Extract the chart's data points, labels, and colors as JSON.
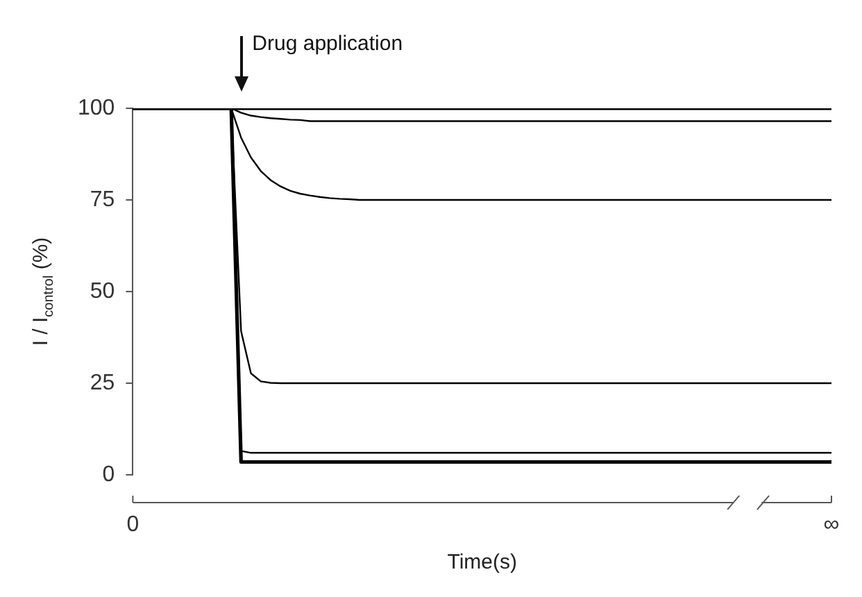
{
  "chart_data": {
    "type": "line",
    "xlabel": "Time(s)",
    "ylabel": "I / I$_{control}$ (%)",
    "annotations": [
      "Drug application"
    ],
    "categories": [
      "0",
      null,
      null,
      null,
      null,
      null,
      null,
      null,
      null,
      null,
      null,
      null,
      null,
      null,
      null,
      null,
      null,
      null,
      null,
      null,
      null,
      null,
      null,
      null,
      null,
      null,
      null,
      null,
      null,
      null,
      null,
      null,
      null,
      null,
      null,
      null,
      null,
      null,
      null,
      null,
      null,
      null,
      null,
      null,
      null,
      null,
      null,
      null,
      null,
      null,
      null,
      null,
      null,
      null,
      null,
      null,
      null,
      null,
      null,
      null,
      null,
      null,
      null,
      null,
      null,
      null,
      null,
      null,
      null,
      null,
      null,
      "∞"
    ],
    "ylim": [
      0,
      100
    ],
    "yticks": [
      0,
      25,
      50,
      75,
      100
    ],
    "grid": false,
    "legend": false,
    "marker": "none",
    "line_style": "solid",
    "series": [
      {
        "color": "#000000",
        "values": [
          100,
          100,
          100,
          100,
          100,
          100,
          100,
          100,
          100,
          100,
          100,
          100,
          100,
          100,
          100,
          100,
          100,
          100,
          100,
          100,
          100,
          100,
          100,
          100,
          100,
          100,
          100,
          100,
          100,
          100,
          100,
          100,
          100,
          100,
          100,
          100,
          100,
          100,
          100,
          100,
          100,
          100,
          100,
          100,
          100,
          100,
          100,
          100,
          100,
          100,
          100,
          100,
          100,
          100,
          100,
          100,
          100,
          100,
          100,
          100,
          100,
          100,
          100,
          100,
          100,
          100,
          100,
          100,
          100,
          100,
          100,
          100
        ]
      },
      {
        "color": "#000000",
        "values": [
          100,
          100,
          100,
          100,
          100,
          100,
          100,
          100,
          100,
          100,
          100,
          98.8,
          98,
          97.6,
          97.3,
          97.1,
          96.9,
          96.8,
          96.5,
          96.5,
          96.5,
          96.5,
          96.5,
          96.5,
          96.5,
          96.5,
          96.5,
          96.5,
          96.5,
          96.5,
          96.5,
          96.5,
          96.5,
          96.5,
          96.5,
          96.5,
          96.5,
          96.5,
          96.5,
          96.5,
          96.5,
          96.5,
          96.5,
          96.5,
          96.5,
          96.5,
          96.5,
          96.5,
          96.5,
          96.5,
          96.5,
          96.5,
          96.5,
          96.5,
          96.5,
          96.5,
          96.5,
          96.5,
          96.5,
          96.5,
          96.5,
          96.5,
          96.5,
          96.5,
          96.5,
          96.5,
          96.5,
          96.5,
          96.5,
          96.5,
          96.5,
          96.5
        ]
      },
      {
        "color": "#000000",
        "values": [
          100,
          100,
          100,
          100,
          100,
          100,
          100,
          100,
          100,
          100,
          100,
          92,
          86.6,
          82.9,
          80.4,
          78.7,
          77.5,
          76.7,
          76.2,
          75.8,
          75.5,
          75.3,
          75.2,
          75,
          75,
          75,
          75,
          75,
          75,
          75,
          75,
          75,
          75,
          75,
          75,
          75,
          75,
          75,
          75,
          75,
          75,
          75,
          75,
          75,
          75,
          75,
          75,
          75,
          75,
          75,
          75,
          75,
          75,
          75,
          75,
          75,
          75,
          75,
          75,
          75,
          75,
          75,
          75,
          75,
          75,
          75,
          75,
          75,
          75,
          75,
          75,
          75
        ]
      },
      {
        "color": "#000000",
        "values": [
          100,
          100,
          100,
          100,
          100,
          100,
          100,
          100,
          100,
          100,
          100,
          39.2,
          27.7,
          25.5,
          25.1,
          25,
          25,
          25,
          25,
          25,
          25,
          25,
          25,
          25,
          25,
          25,
          25,
          25,
          25,
          25,
          25,
          25,
          25,
          25,
          25,
          25,
          25,
          25,
          25,
          25,
          25,
          25,
          25,
          25,
          25,
          25,
          25,
          25,
          25,
          25,
          25,
          25,
          25,
          25,
          25,
          25,
          25,
          25,
          25,
          25,
          25,
          25,
          25,
          25,
          25,
          25,
          25,
          25,
          25,
          25,
          25,
          25
        ]
      },
      {
        "color": "#000000",
        "values": [
          100,
          100,
          100,
          100,
          100,
          100,
          100,
          100,
          100,
          100,
          100,
          6.5,
          6,
          6,
          6,
          6,
          6,
          6,
          6,
          6,
          6,
          6,
          6,
          6,
          6,
          6,
          6,
          6,
          6,
          6,
          6,
          6,
          6,
          6,
          6,
          6,
          6,
          6,
          6,
          6,
          6,
          6,
          6,
          6,
          6,
          6,
          6,
          6,
          6,
          6,
          6,
          6,
          6,
          6,
          6,
          6,
          6,
          6,
          6,
          6,
          6,
          6,
          6,
          6,
          6,
          6,
          6,
          6,
          6,
          6,
          6,
          6
        ]
      },
      {
        "color": "#000000",
        "values": [
          100,
          100,
          100,
          100,
          100,
          100,
          100,
          100,
          100,
          100,
          100,
          3.5,
          3.5,
          3.5,
          3.5,
          3.5,
          3.5,
          3.5,
          3.5,
          3.5,
          3.5,
          3.5,
          3.5,
          3.5,
          3.5,
          3.5,
          3.5,
          3.5,
          3.5,
          3.5,
          3.5,
          3.5,
          3.5,
          3.5,
          3.5,
          3.5,
          3.5,
          3.5,
          3.5,
          3.5,
          3.5,
          3.5,
          3.5,
          3.5,
          3.5,
          3.5,
          3.5,
          3.5,
          3.5,
          3.5,
          3.5,
          3.5,
          3.5,
          3.5,
          3.5,
          3.5,
          3.5,
          3.5,
          3.5,
          3.5,
          3.5,
          3.5,
          3.5,
          3.5,
          3.5,
          3.5,
          3.5,
          3.5,
          3.5,
          3.5,
          3.5,
          3.5
        ]
      }
    ]
  }
}
